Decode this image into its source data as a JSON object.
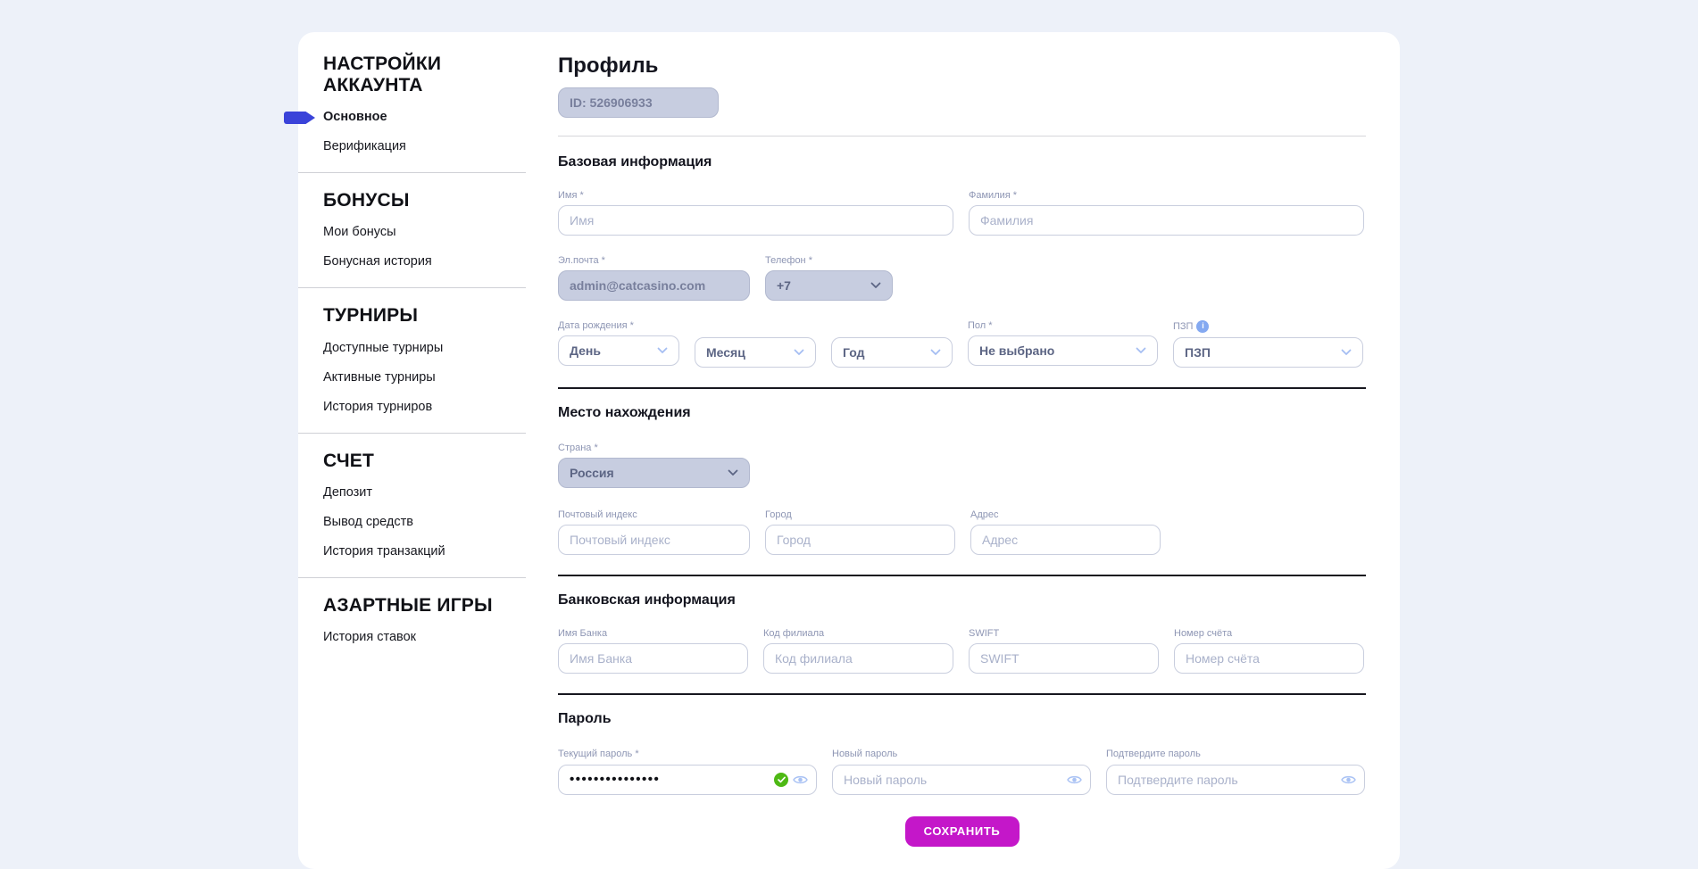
{
  "colors": {
    "accent_blue": "#3A43D9",
    "save_magenta": "#C417C9",
    "valid_green": "#4EB914",
    "info_blue": "#84A9F1"
  },
  "sidebar": {
    "sections": [
      {
        "title": "НАСТРОЙКИ АККАУНТА",
        "items": [
          {
            "label": "Основное",
            "active": true
          },
          {
            "label": "Верификация",
            "active": false
          }
        ]
      },
      {
        "title": "БОНУСЫ",
        "items": [
          {
            "label": "Мои бонусы",
            "active": false
          },
          {
            "label": "Бонусная история",
            "active": false
          }
        ]
      },
      {
        "title": "ТУРНИРЫ",
        "items": [
          {
            "label": "Доступные турниры",
            "active": false
          },
          {
            "label": "Активные турниры",
            "active": false
          },
          {
            "label": "История турниров",
            "active": false
          }
        ]
      },
      {
        "title": "СЧЕТ",
        "items": [
          {
            "label": "Депозит",
            "active": false
          },
          {
            "label": "Вывод средств",
            "active": false
          },
          {
            "label": "История транзакций",
            "active": false
          }
        ]
      },
      {
        "title": "АЗАРТНЫЕ ИГРЫ",
        "items": [
          {
            "label": "История ставок",
            "active": false
          }
        ]
      }
    ]
  },
  "profile": {
    "title": "Профиль",
    "player_id": "ID: 526906933"
  },
  "basic_info": {
    "title": "Базовая информация",
    "first_name": {
      "label": "Имя *",
      "placeholder": "Имя",
      "value": ""
    },
    "last_name": {
      "label": "Фамилия *",
      "placeholder": "Фамилия",
      "value": ""
    },
    "email": {
      "label": "Эл.почта *",
      "value": "admin@catcasino.com"
    },
    "phone": {
      "label": "Телефон *",
      "value": "+7"
    },
    "birth_date": {
      "label": "Дата рождения *",
      "day": "День",
      "month": "Месяц",
      "year": "Год"
    },
    "gender": {
      "label": "Пол *",
      "value": "Не выбрано"
    },
    "pzp": {
      "label": "ПЗП",
      "info_icon": "i",
      "value": "ПЗП"
    }
  },
  "location": {
    "title": "Место нахождения",
    "country": {
      "label": "Страна *",
      "value": "Россия"
    },
    "postal_code": {
      "label": "Почтовый индекс",
      "placeholder": "Почтовый индекс",
      "value": ""
    },
    "city": {
      "label": "Город",
      "placeholder": "Город",
      "value": ""
    },
    "address": {
      "label": "Адрес",
      "placeholder": "Адрес",
      "value": ""
    }
  },
  "bank_info": {
    "title": "Банковская информация",
    "bank_name": {
      "label": "Имя Банка",
      "placeholder": "Имя Банка",
      "value": ""
    },
    "branch_code": {
      "label": "Код филиала",
      "placeholder": "Код филиала",
      "value": ""
    },
    "swift": {
      "label": "SWIFT",
      "placeholder": "SWIFT",
      "value": ""
    },
    "account_number": {
      "label": "Номер счёта",
      "placeholder": "Номер счёта",
      "value": ""
    }
  },
  "password": {
    "title": "Пароль",
    "current": {
      "label": "Текущий пароль *",
      "value": "•••••••••••••••"
    },
    "new_password": {
      "label": "Новый пароль",
      "placeholder": "Новый пароль",
      "value": ""
    },
    "confirm": {
      "label": "Подтвердите пароль",
      "placeholder": "Подтвердите пароль",
      "value": ""
    }
  },
  "save_button": {
    "label": "СОХРАНИТЬ"
  }
}
